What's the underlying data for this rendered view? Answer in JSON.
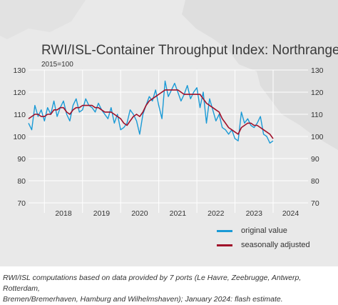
{
  "header": {
    "title": "RWI/ISL-Container Throughput Index: Northrange",
    "subtitle": "2015=100"
  },
  "legend": [
    {
      "label": "original value",
      "color": "#1a9ad6"
    },
    {
      "label": "seasonally adjusted",
      "color": "#a0102a"
    }
  ],
  "footnote": {
    "line1": "RWI/ISL computations based on data provided by 7 ports (Le Havre, Zeebrugge, Antwerp, Rotterdam,",
    "line2": "Bremen/Bremerhaven, Hamburg and Wilhelmshaven); January 2024: flash estimate."
  },
  "colors": {
    "background": "#e9e9e9",
    "grid": "#ffffff",
    "axis_text": "#333333"
  },
  "chart_data": {
    "type": "line",
    "title": "RWI/ISL-Container Throughput Index: Northrange",
    "subtitle": "2015=100",
    "ylim": [
      70,
      130
    ],
    "yticks": [
      70,
      80,
      90,
      100,
      110,
      120,
      130
    ],
    "ytick_labels": [
      "70",
      "80",
      "90",
      "100",
      "110",
      "120",
      "130"
    ],
    "xlim": [
      "2017-08",
      "2024-12"
    ],
    "x_labels": [
      "2018",
      "2019",
      "2020",
      "2021",
      "2022",
      "2023",
      "2024"
    ],
    "grid": true,
    "legend_position": "bottom-right",
    "x": [
      "2017-08",
      "2017-09",
      "2017-10",
      "2017-11",
      "2017-12",
      "2018-01",
      "2018-02",
      "2018-03",
      "2018-04",
      "2018-05",
      "2018-06",
      "2018-07",
      "2018-08",
      "2018-09",
      "2018-10",
      "2018-11",
      "2018-12",
      "2019-01",
      "2019-02",
      "2019-03",
      "2019-04",
      "2019-05",
      "2019-06",
      "2019-07",
      "2019-08",
      "2019-09",
      "2019-10",
      "2019-11",
      "2019-12",
      "2020-01",
      "2020-02",
      "2020-03",
      "2020-04",
      "2020-05",
      "2020-06",
      "2020-07",
      "2020-08",
      "2020-09",
      "2020-10",
      "2020-11",
      "2020-12",
      "2021-01",
      "2021-02",
      "2021-03",
      "2021-04",
      "2021-05",
      "2021-06",
      "2021-07",
      "2021-08",
      "2021-09",
      "2021-10",
      "2021-11",
      "2021-12",
      "2022-01",
      "2022-02",
      "2022-03",
      "2022-04",
      "2022-05",
      "2022-06",
      "2022-07",
      "2022-08",
      "2022-09",
      "2022-10",
      "2022-11",
      "2022-12",
      "2023-01",
      "2023-02",
      "2023-03",
      "2023-04",
      "2023-05",
      "2023-06",
      "2023-07",
      "2023-08",
      "2023-09",
      "2023-10",
      "2023-11",
      "2023-12",
      "2024-01"
    ],
    "series": [
      {
        "name": "original value",
        "color": "#1a9ad6",
        "values": [
          106,
          103,
          114,
          109,
          112,
          107,
          113,
          110,
          116,
          109,
          113,
          116,
          110,
          107,
          114,
          117,
          111,
          112,
          117,
          114,
          113,
          111,
          115,
          112,
          110,
          108,
          113,
          106,
          110,
          103,
          104,
          106,
          112,
          110,
          107,
          101,
          110,
          114,
          118,
          116,
          121,
          114,
          108,
          125,
          118,
          121,
          124,
          120,
          116,
          119,
          123,
          117,
          120,
          122,
          113,
          120,
          106,
          117,
          112,
          107,
          110,
          104,
          103,
          101,
          103,
          99,
          98,
          111,
          106,
          108,
          105,
          104,
          106,
          109,
          101,
          100,
          97,
          98
        ]
      },
      {
        "name": "seasonally adjusted",
        "color": "#a0102a",
        "values": [
          108,
          109,
          110,
          110,
          109,
          109,
          110,
          110,
          112,
          112,
          113,
          113,
          111,
          110,
          112,
          113,
          113,
          114,
          114,
          114,
          114,
          113,
          113,
          112,
          111,
          111,
          111,
          110,
          109,
          108,
          106,
          105,
          107,
          109,
          110,
          109,
          111,
          114,
          116,
          117,
          118,
          119,
          120,
          121,
          121,
          121,
          121,
          121,
          120,
          119,
          119,
          119,
          119,
          119,
          119,
          117,
          115,
          114,
          113,
          112,
          111,
          108,
          106,
          104,
          103,
          102,
          101,
          104,
          105,
          106,
          106,
          105,
          105,
          104,
          103,
          102,
          101,
          99
        ]
      }
    ]
  }
}
